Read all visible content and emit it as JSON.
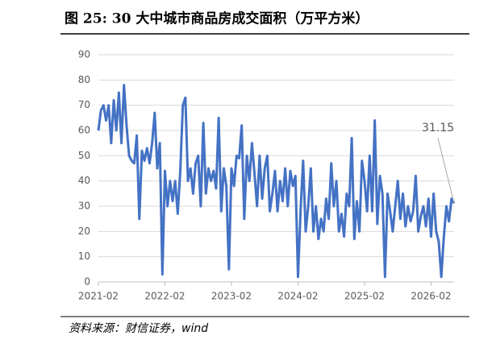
{
  "chart_data": {
    "type": "line",
    "title": "图 25:  30 大中城市商品房成交面积（万平方米）",
    "source": "资料来源：财信证券，wind",
    "annotation": "31.15",
    "x": [
      0,
      1,
      2,
      3,
      4,
      5,
      6,
      7,
      8,
      9,
      10,
      11,
      12,
      13,
      14,
      15,
      16,
      17,
      18,
      19,
      20,
      21,
      22,
      23,
      24,
      25,
      26,
      27,
      28,
      29,
      30,
      31,
      32,
      33,
      34,
      35,
      36,
      37,
      38,
      39,
      40,
      41,
      42,
      43,
      44,
      45,
      46,
      47,
      48,
      49,
      50,
      51,
      52,
      53,
      54,
      55,
      56,
      57,
      58,
      59,
      60,
      61,
      62,
      63,
      64,
      65,
      66,
      67,
      68,
      69,
      70,
      71,
      72,
      73,
      74,
      75,
      76,
      77,
      78,
      79,
      80,
      81,
      82,
      83,
      84,
      85,
      86,
      87,
      88,
      89,
      90,
      91,
      92,
      93,
      94,
      95,
      96,
      97,
      98,
      99,
      100,
      101,
      102,
      103,
      104,
      105,
      106,
      107,
      108,
      109,
      110,
      111,
      112,
      113,
      114,
      115,
      116,
      117,
      118,
      119,
      120,
      121,
      122,
      123,
      124,
      125,
      126,
      127,
      128,
      129,
      130,
      131,
      132,
      133,
      134,
      135,
      136,
      137,
      138,
      139
    ],
    "xlim": [
      0,
      139
    ],
    "xticks": [
      {
        "value": 0,
        "label": "2021-02"
      },
      {
        "value": 26,
        "label": "2022-02"
      },
      {
        "value": 52,
        "label": "2023-02"
      },
      {
        "value": 78,
        "label": "2024-02"
      },
      {
        "value": 104,
        "label": "2025-02"
      },
      {
        "value": 130,
        "label": "2026-02"
      }
    ],
    "ylim": [
      0,
      90
    ],
    "yticks": [
      0,
      10,
      20,
      30,
      40,
      50,
      60,
      70,
      80,
      90
    ],
    "grid": true,
    "series": [
      {
        "color": "#4472c4",
        "values": [
          60,
          68,
          70,
          64,
          70,
          55,
          72,
          60,
          75,
          55,
          78,
          62,
          50,
          48,
          47,
          58,
          25,
          52,
          48,
          53,
          47,
          55,
          67,
          45,
          55,
          3,
          44,
          30,
          40,
          32,
          40,
          27,
          44,
          70,
          73,
          40,
          45,
          35,
          47,
          50,
          30,
          63,
          35,
          45,
          40,
          44,
          37,
          65,
          28,
          45,
          38,
          5,
          45,
          38,
          50,
          49,
          62,
          25,
          50,
          40,
          55,
          43,
          30,
          50,
          33,
          45,
          50,
          28,
          35,
          44,
          28,
          40,
          32,
          45,
          30,
          44,
          38,
          42,
          2,
          28,
          48,
          20,
          30,
          45,
          20,
          30,
          17,
          25,
          20,
          33,
          25,
          47,
          30,
          40,
          20,
          27,
          18,
          35,
          30,
          57,
          17,
          32,
          20,
          48,
          40,
          28,
          50,
          28,
          64,
          23,
          42,
          35,
          2,
          35,
          28,
          20,
          30,
          40,
          25,
          35,
          22,
          30,
          24,
          28,
          42,
          20,
          26,
          30,
          22,
          33,
          18,
          35,
          20,
          16,
          2,
          18,
          30,
          24,
          33,
          31.15
        ]
      }
    ]
  }
}
